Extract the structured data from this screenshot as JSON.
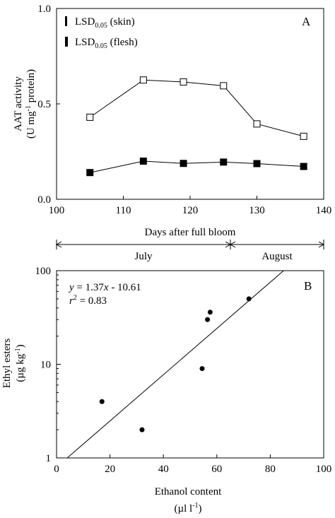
{
  "chart_data": [
    {
      "type": "line",
      "panel_label": "A",
      "title": "",
      "xlabel": "Days after full bloom",
      "ylabel_line1": "AAT activity",
      "ylabel_line2_parts": [
        "(U mg",
        "-1",
        " protein)"
      ],
      "xlim": [
        100,
        140
      ],
      "ylim": [
        0,
        1
      ],
      "x_ticks": [
        100,
        110,
        120,
        130,
        140
      ],
      "y_ticks": [
        0,
        0.5,
        1
      ],
      "x_tick_labels": [
        "100",
        "110",
        "120",
        "130",
        "140"
      ],
      "y_tick_labels": [
        "0.0",
        "0.5",
        "1.0"
      ],
      "legend": [
        {
          "marker": "bar",
          "text": "LSD",
          "sub": "0.05",
          "suffix": " (skin)"
        },
        {
          "marker": "bar-wide",
          "text": "LSD",
          "sub": "0.05",
          "suffix": " (flesh)"
        }
      ],
      "series": [
        {
          "marker": "open-square",
          "x": [
            105,
            113,
            119,
            125,
            130,
            137
          ],
          "y": [
            0.43,
            0.625,
            0.615,
            0.595,
            0.395,
            0.33
          ]
        },
        {
          "marker": "filled-square",
          "x": [
            105,
            113,
            119,
            125,
            130,
            137
          ],
          "y": [
            0.14,
            0.2,
            0.188,
            0.195,
            0.187,
            0.172
          ]
        }
      ],
      "months": {
        "xlim": [
          100,
          140
        ],
        "divider": 125,
        "labels": [
          "July",
          "August"
        ]
      },
      "grid": false
    },
    {
      "type": "scatter",
      "panel_label": "B",
      "title": "",
      "xlabel_line1": "Ethanol content",
      "xlabel_line2_parts": [
        "(µl l",
        "-1",
        ")"
      ],
      "ylabel_line1": "Ethyl esters",
      "ylabel_line2_parts": [
        "(µg kg",
        "-1",
        ")"
      ],
      "xlim": [
        0,
        100
      ],
      "ylim": [
        1,
        100
      ],
      "y_scale": "log",
      "x_ticks": [
        0,
        20,
        40,
        60,
        80,
        100
      ],
      "y_ticks": [
        1,
        10,
        100
      ],
      "x_tick_labels": [
        "0",
        "20",
        "40",
        "60",
        "80",
        "100"
      ],
      "y_tick_labels": [
        "1",
        "10",
        "100"
      ],
      "equation_parts": [
        "y",
        " = 1.37",
        "x",
        " - 10.61"
      ],
      "r2_parts": [
        "r",
        "2",
        " = 0.83"
      ],
      "points": {
        "x": [
          17,
          32,
          54.5,
          56.5,
          57.5,
          72
        ],
        "y": [
          4,
          2,
          9,
          30,
          36,
          50
        ]
      },
      "fit_line": {
        "x": [
          4,
          85
        ],
        "y": [
          1,
          100
        ]
      },
      "grid": false
    }
  ]
}
